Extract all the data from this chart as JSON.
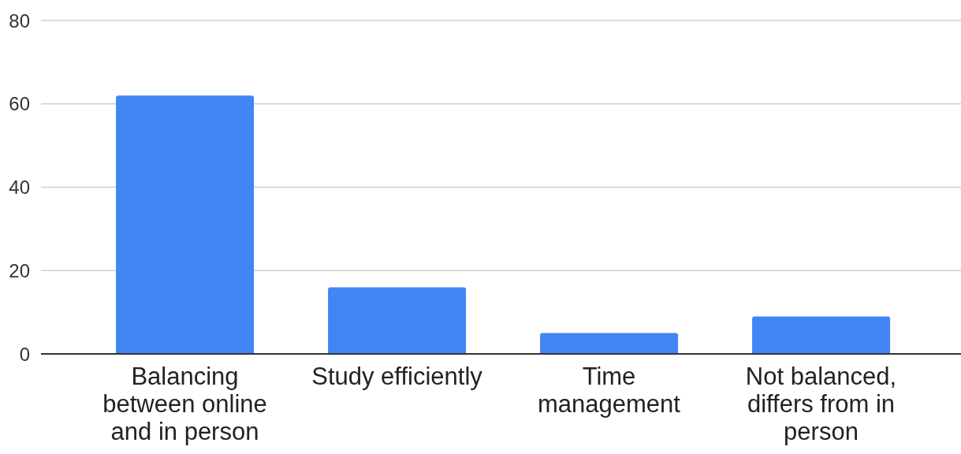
{
  "chart_data": {
    "type": "bar",
    "categories": [
      "Balancing between online and in person",
      "Study efficiently",
      "Time management",
      "Not balanced, differs from in person"
    ],
    "values": [
      62,
      16,
      5,
      9
    ],
    "color": "#4285f4",
    "ylim": [
      0,
      80
    ],
    "yticks": [
      0,
      20,
      40,
      60,
      80
    ],
    "grid": "y"
  }
}
